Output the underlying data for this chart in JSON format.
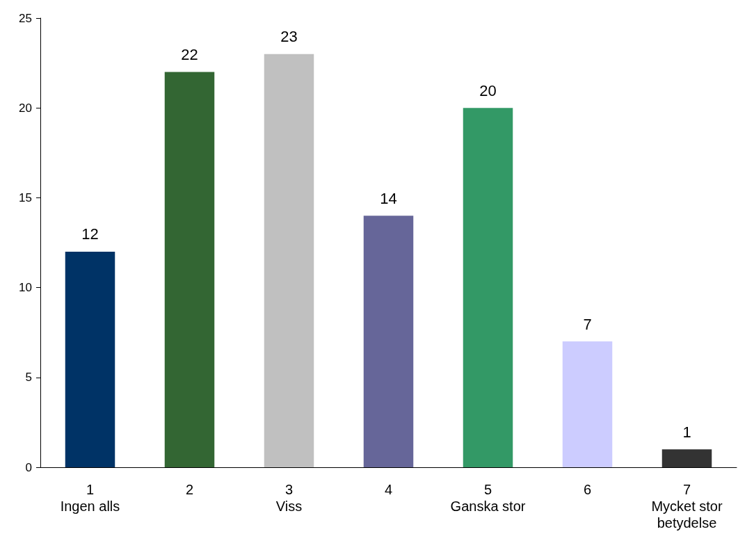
{
  "chart_data": {
    "type": "bar",
    "categories": [
      "1\nIngen alls",
      "2",
      "3\nViss",
      "4",
      "5\nGanska stor",
      "6",
      "7\nMycket stor\nbetydelse"
    ],
    "values": [
      12,
      22,
      23,
      14,
      20,
      7,
      1
    ],
    "colors": [
      "#003366",
      "#336633",
      "#c0c0c0",
      "#666699",
      "#339966",
      "#ccccff",
      "#333333"
    ],
    "ylim": [
      0,
      25
    ],
    "yticks": [
      0,
      5,
      10,
      15,
      20,
      25
    ],
    "grid": false,
    "data_labels": true
  }
}
